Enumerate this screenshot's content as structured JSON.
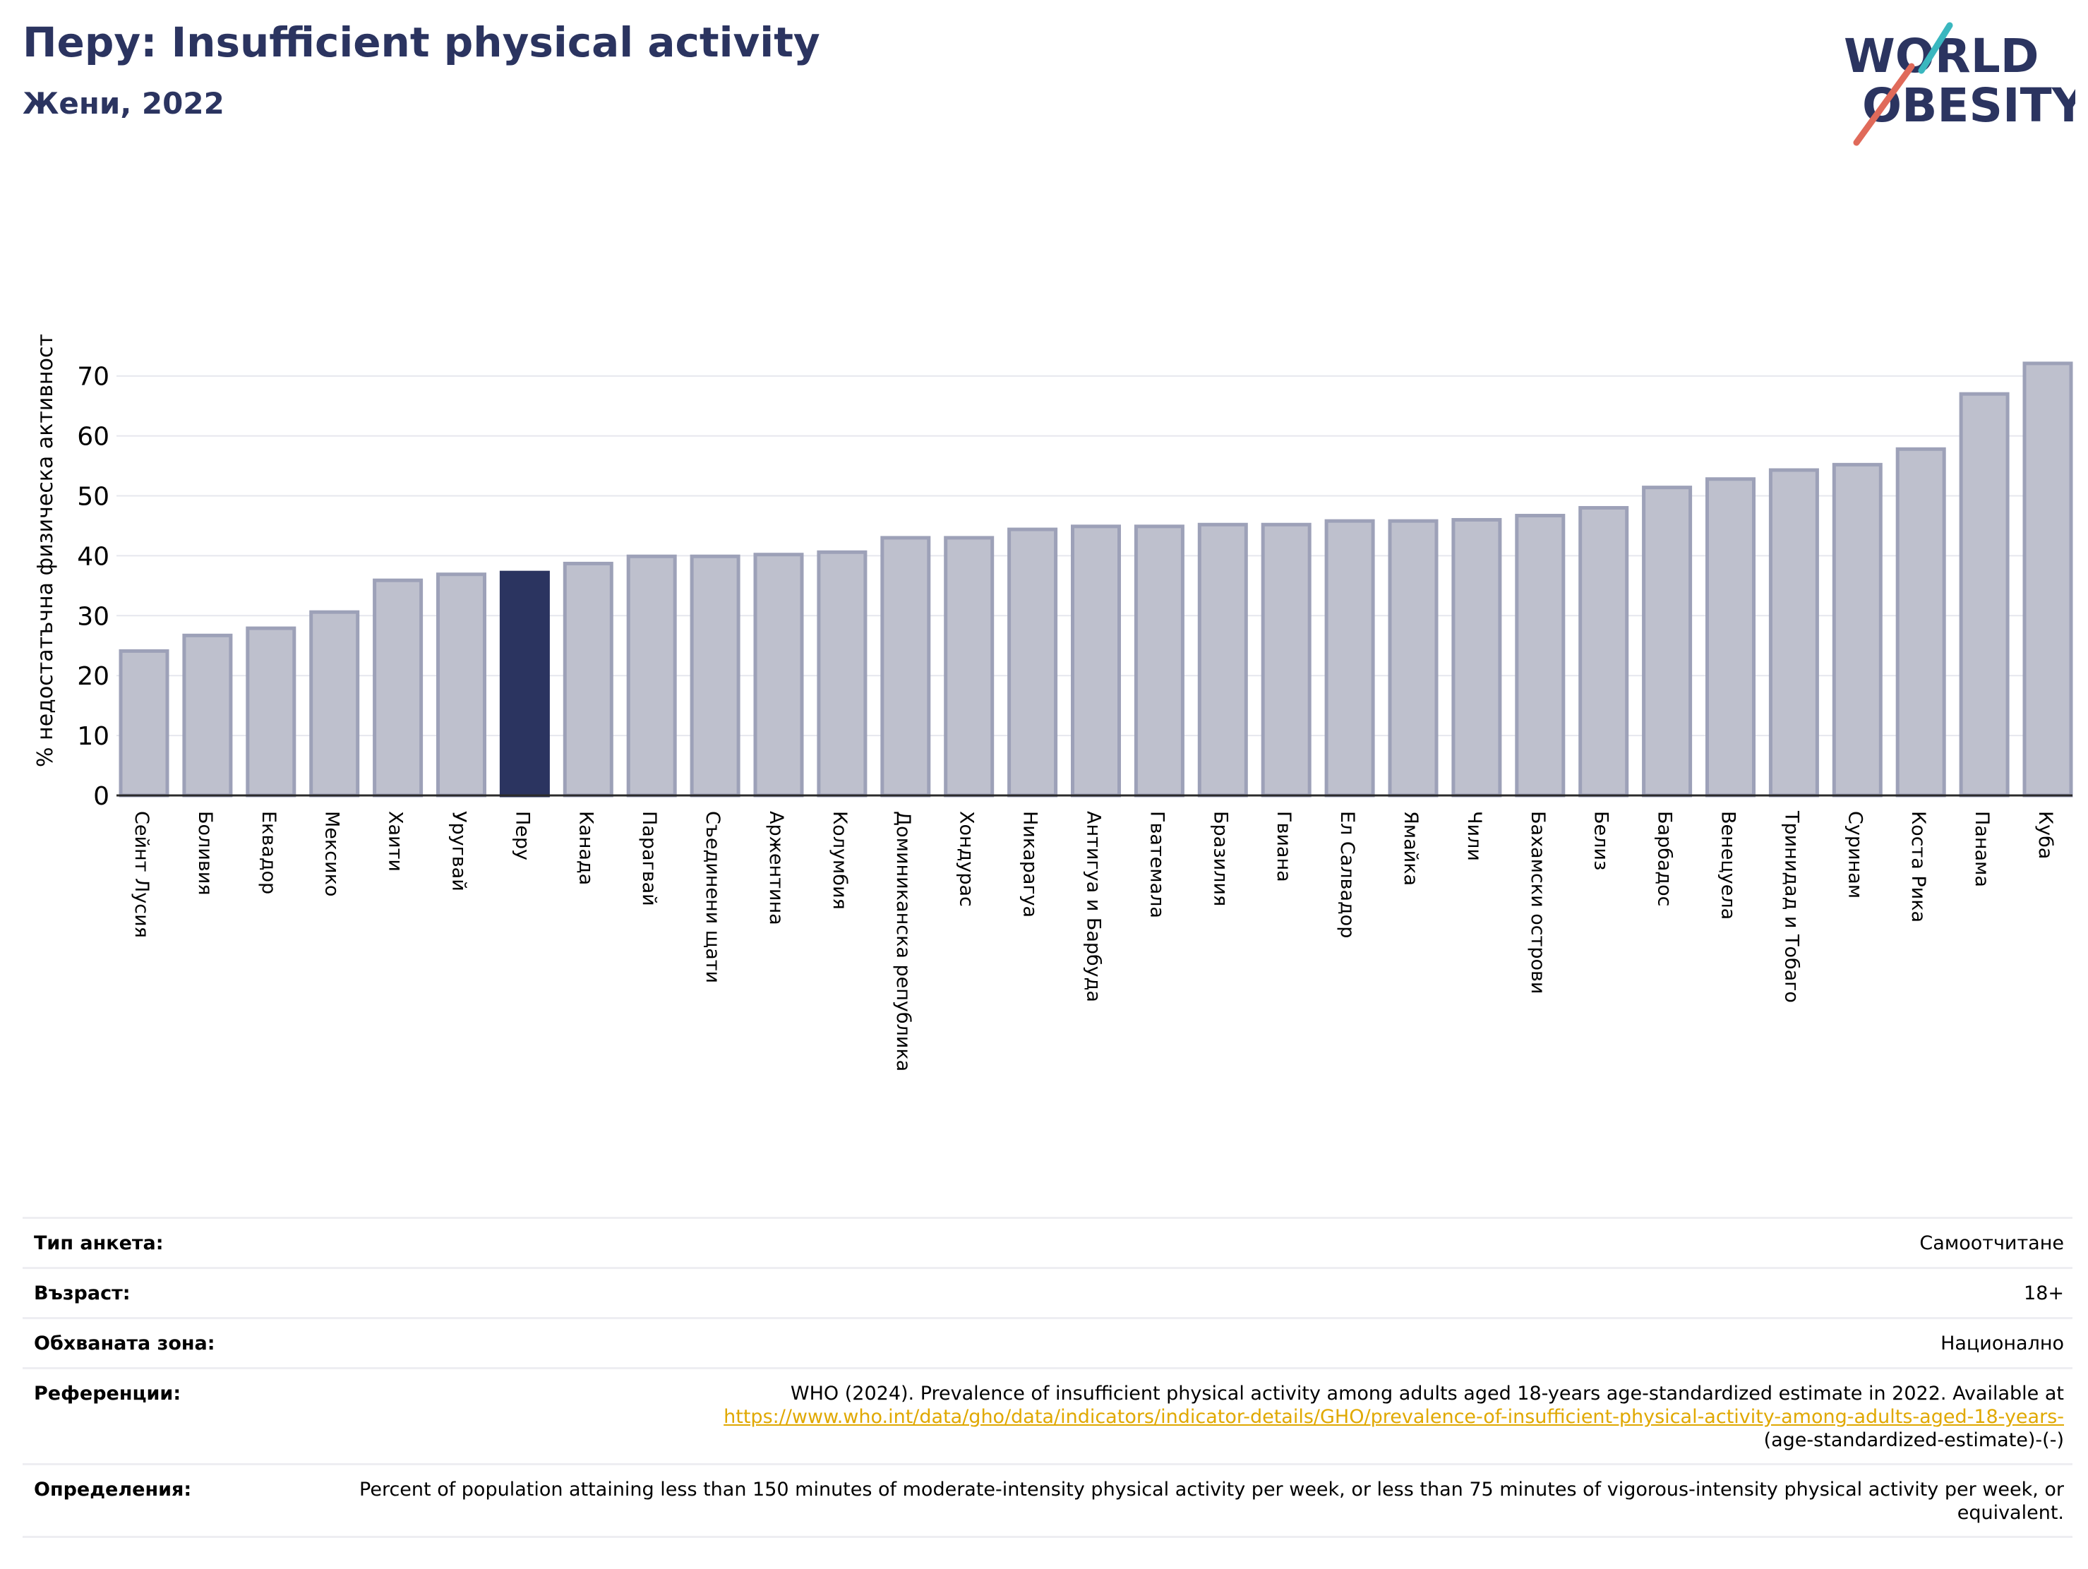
{
  "header": {
    "title": "Перу: Insufficient physical activity",
    "subtitle": "Жени, 2022"
  },
  "logo": {
    "line1": "WORLD",
    "line2": "OBESITY"
  },
  "colors": {
    "highlight": "#2b3460",
    "bar": "#bec0cd",
    "bar_edge": "#9da1b8",
    "logo_teal": "#3ab7bf",
    "logo_coral": "#e06a5a"
  },
  "chart_data": {
    "type": "bar",
    "title": "Перу: Insufficient physical activity",
    "subtitle": "Жени, 2022",
    "ylabel": "% недостатъчна физическа активност",
    "ylim": [
      0,
      73
    ],
    "yticks": [
      0,
      10,
      20,
      30,
      40,
      50,
      60,
      70
    ],
    "grid": true,
    "highlight": "Перу",
    "categories": [
      "Сейнт Лусия",
      "Боливия",
      "Еквадор",
      "Мексико",
      "Хаити",
      "Уругвай",
      "Перу",
      "Канада",
      "Парагвай",
      "Съединени щати",
      "Аржентина",
      "Колумбия",
      "Доминиканска република",
      "Хондурас",
      "Никарагуа",
      "Антигуа и Барбуда",
      "Гватемала",
      "Бразилия",
      "Гвиана",
      "Ел Салвадор",
      "Ямайка",
      "Чили",
      "Бахамски острови",
      "Белиз",
      "Барбадос",
      "Венецуела",
      "Тринидад и Тобаго",
      "Суринам",
      "Коста Рика",
      "Панама",
      "Куба"
    ],
    "values": [
      24.1,
      26.7,
      27.9,
      30.6,
      35.9,
      36.9,
      37.2,
      38.7,
      39.9,
      39.9,
      40.2,
      40.6,
      43.0,
      43.0,
      44.4,
      44.9,
      44.9,
      45.2,
      45.2,
      45.8,
      45.8,
      46.0,
      46.7,
      48.0,
      51.4,
      52.8,
      54.3,
      55.2,
      57.8,
      67.0,
      72.1
    ]
  },
  "info": {
    "survey_label": "Тип анкета:",
    "survey_value": "Самоотчитане",
    "age_label": "Възраст:",
    "age_value": "18+",
    "area_label": "Обхваната зона:",
    "area_value": "Национално",
    "refs_label": "Референции:",
    "refs_text": "WHO (2024). Prevalence of insufficient physical activity among adults aged 18-years age-standardized estimate in 2022. Available at",
    "refs_link": "https://www.who.int/data/gho/data/indicators/indicator-details/GHO/prevalence-of-insufficient-physical-activity-among-adults-aged-18-years-",
    "refs_tail": "(age-standardized-estimate)-(-)",
    "defs_label": "Определения:",
    "defs_value": "Percent of population attaining less than 150 minutes of moderate-intensity physical activity per week, or less than 75 minutes of vigorous-intensity physical activity per week, or equivalent."
  }
}
